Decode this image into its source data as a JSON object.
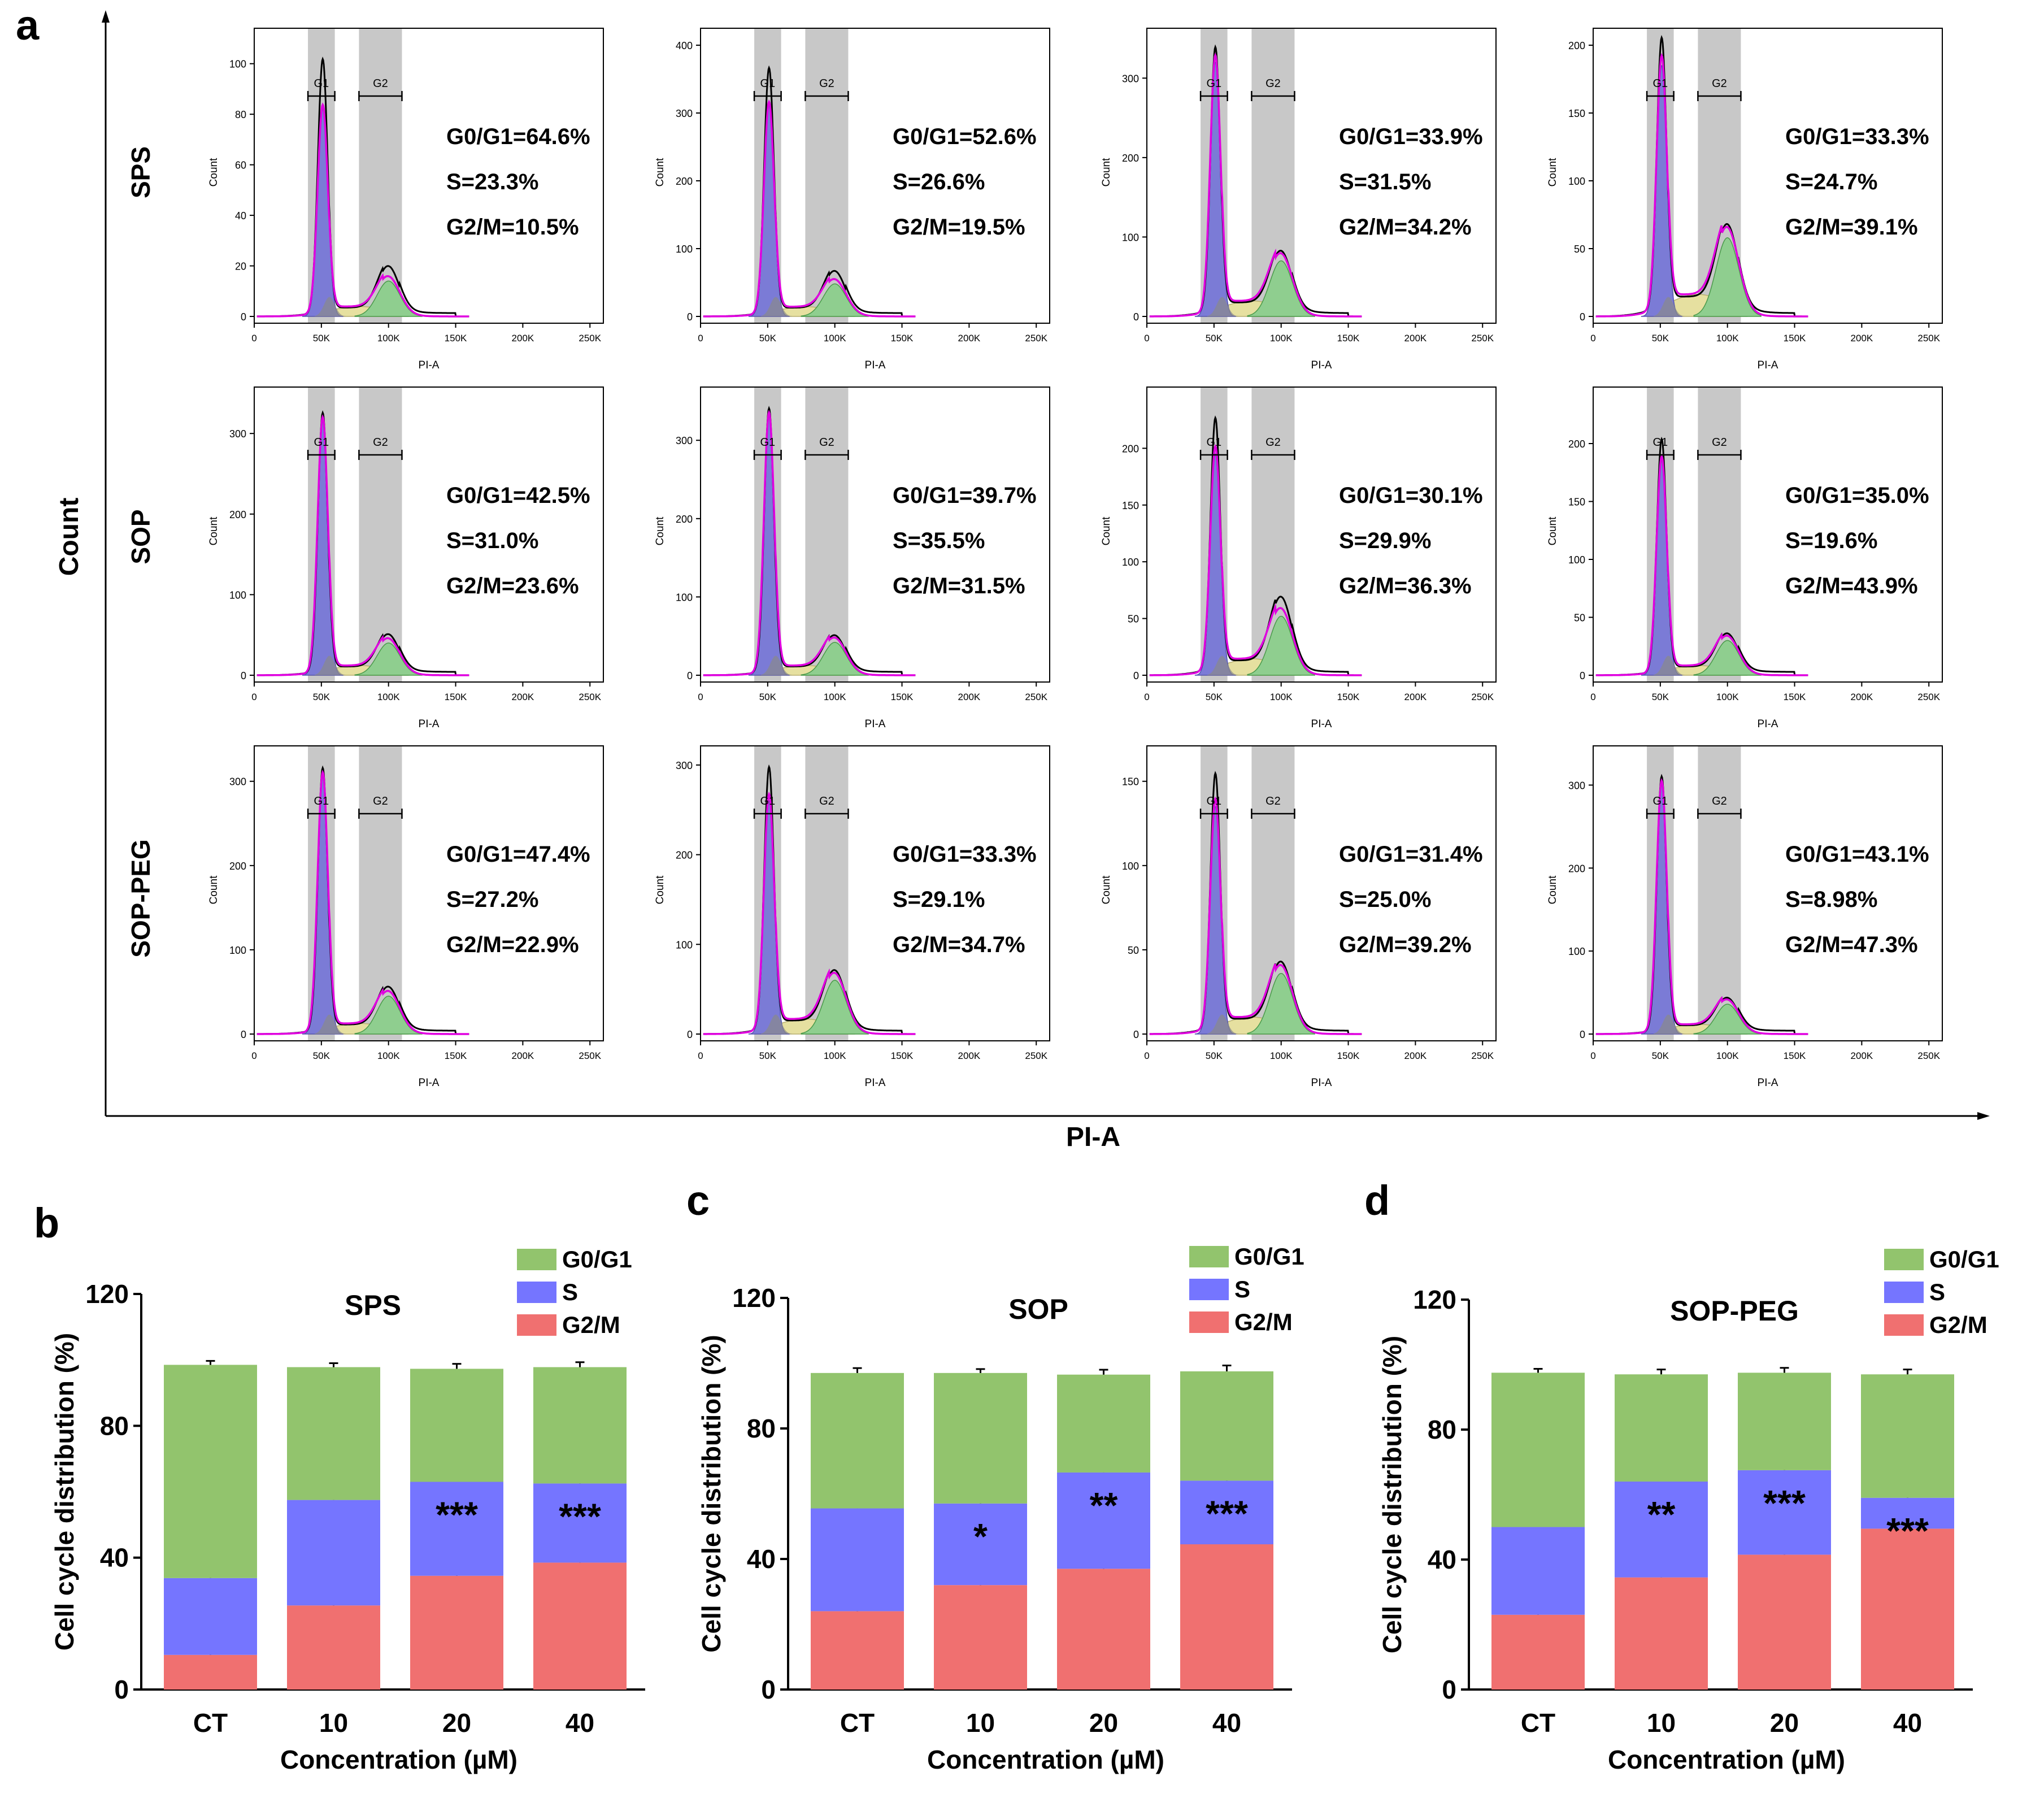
{
  "colors": {
    "g0g1": "#92c46d",
    "s": "#7575ff",
    "g2m": "#f07070",
    "gate": "#c8c8c8",
    "hist_g1_fill": "#7b7bd6",
    "hist_g2_fill": "#8fce8f",
    "hist_s_fill": "#e6e0a0",
    "hist_debris": "#8a8a8a",
    "line_black": "#000000",
    "line_magenta": "#e000e0"
  },
  "panel_a": {
    "letter": "a",
    "x_title": "PI-A",
    "y_title": "Count",
    "row_labels": [
      "SPS",
      "SOP",
      "SOP-PEG"
    ],
    "plot_xlabel": "PI-A",
    "plot_ylabel": "Count",
    "gate_labels": [
      "G1",
      "G2"
    ],
    "xticks": [
      "0",
      "50K",
      "100K",
      "150K",
      "200K",
      "250K"
    ]
  },
  "panel_b": {
    "letter": "b"
  },
  "panel_c": {
    "letter": "c"
  },
  "panel_d": {
    "letter": "d"
  },
  "chart_data": [
    {
      "type": "histogram",
      "panel": "a",
      "description": "Flow cytometry PI-A histograms, 3 rows (SPS, SOP, SOP-PEG) x 4 columns (CT, 10, 20, 40 uM)",
      "x_axis": {
        "label": "PI-A",
        "range": [
          0,
          260000
        ],
        "ticks": [
          "0",
          "50K",
          "100K",
          "150K",
          "200K",
          "250K"
        ]
      },
      "plots": [
        {
          "row": "SPS",
          "col": 1,
          "yticks": [
            0,
            20,
            40,
            60,
            80,
            100
          ],
          "ymax": 110,
          "g1_peak": 100,
          "g1_model": 82,
          "g2_peak": 18,
          "g2_model": 14,
          "stats": [
            "G0/G1=64.6%",
            "S=23.3%",
            "G2/M=10.5%"
          ]
        },
        {
          "row": "SPS",
          "col": 2,
          "yticks": [
            0,
            100,
            200,
            300,
            400
          ],
          "ymax": 410,
          "g1_peak": 360,
          "g1_model": 310,
          "g2_peak": 60,
          "g2_model": 48,
          "stats": [
            "G0/G1=52.6%",
            "S=26.6%",
            "G2/M=19.5%"
          ]
        },
        {
          "row": "SPS",
          "col": 3,
          "yticks": [
            0,
            100,
            200,
            300
          ],
          "ymax": 350,
          "g1_peak": 330,
          "g1_model": 320,
          "g2_peak": 73,
          "g2_model": 70,
          "stats": [
            "G0/G1=33.9%",
            "S=31.5%",
            "G2/M=34.2%"
          ]
        },
        {
          "row": "SPS",
          "col": 4,
          "yticks": [
            0,
            50,
            100,
            150,
            200
          ],
          "ymax": 205,
          "g1_peak": 198,
          "g1_model": 185,
          "g2_peak": 60,
          "g2_model": 58,
          "stats": [
            "G0/G1=33.3%",
            "S=24.7%",
            "G2/M=39.1%"
          ]
        },
        {
          "row": "SOP",
          "col": 1,
          "yticks": [
            0,
            100,
            200,
            300
          ],
          "ymax": 345,
          "g1_peak": 320,
          "g1_model": 315,
          "g2_peak": 45,
          "g2_model": 40,
          "stats": [
            "G0/G1=42.5%",
            "S=31.0%",
            "G2/M=23.6%"
          ]
        },
        {
          "row": "SOP",
          "col": 2,
          "yticks": [
            0,
            100,
            200,
            300
          ],
          "ymax": 355,
          "g1_peak": 335,
          "g1_model": 330,
          "g2_peak": 45,
          "g2_model": 42,
          "stats": [
            "G0/G1=39.7%",
            "S=35.5%",
            "G2/M=31.5%"
          ]
        },
        {
          "row": "SOP",
          "col": 3,
          "yticks": [
            0,
            50,
            100,
            150,
            200
          ],
          "ymax": 245,
          "g1_peak": 220,
          "g1_model": 195,
          "g2_peak": 62,
          "g2_model": 52,
          "stats": [
            "G0/G1=30.1%",
            "S=29.9%",
            "G2/M=36.3%"
          ]
        },
        {
          "row": "SOP",
          "col": 4,
          "yticks": [
            0,
            50,
            100,
            150,
            200
          ],
          "ymax": 240,
          "g1_peak": 200,
          "g1_model": 185,
          "g2_peak": 32,
          "g2_model": 30,
          "stats": [
            "G0/G1=35.0%",
            "S=19.6%",
            "G2/M=43.9%"
          ]
        },
        {
          "row": "SOP-PEG",
          "col": 1,
          "yticks": [
            0,
            100,
            200,
            300
          ],
          "ymax": 330,
          "g1_peak": 310,
          "g1_model": 305,
          "g2_peak": 50,
          "g2_model": 45,
          "stats": [
            "G0/G1=47.4%",
            "S=27.2%",
            "G2/M=22.9%"
          ]
        },
        {
          "row": "SOP-PEG",
          "col": 2,
          "yticks": [
            0,
            100,
            200,
            300
          ],
          "ymax": 310,
          "g1_peak": 290,
          "g1_model": 260,
          "g2_peak": 63,
          "g2_model": 60,
          "stats": [
            "G0/G1=33.3%",
            "S=29.1%",
            "G2/M=34.7%"
          ]
        },
        {
          "row": "SOP-PEG",
          "col": 3,
          "yticks": [
            0,
            50,
            100,
            150
          ],
          "ymax": 165,
          "g1_peak": 150,
          "g1_model": 135,
          "g2_peak": 38,
          "g2_model": 36,
          "stats": [
            "G0/G1=31.4%",
            "S=25.0%",
            "G2/M=39.2%"
          ]
        },
        {
          "row": "SOP-PEG",
          "col": 4,
          "yticks": [
            0,
            100,
            200,
            300
          ],
          "ymax": 335,
          "g1_peak": 305,
          "g1_model": 300,
          "g2_peak": 38,
          "g2_model": 36,
          "stats": [
            "G0/G1=43.1%",
            "S=8.98%",
            "G2/M=47.3%"
          ]
        }
      ]
    },
    {
      "type": "bar",
      "stacked": true,
      "panel": "b",
      "title": "SPS",
      "xlabel": "Concentration (µM)",
      "ylabel": "Cell cycle distribution (%)",
      "ylim": [
        0,
        120
      ],
      "yticks": [
        0,
        40,
        80,
        120
      ],
      "categories": [
        "CT",
        "10",
        "20",
        "40"
      ],
      "series": [
        {
          "name": "G2/M",
          "values": [
            10.5,
            25.5,
            34.5,
            38.5
          ],
          "errors": [
            1.5,
            1.2,
            1.5,
            1.5
          ]
        },
        {
          "name": "S",
          "values": [
            23.3,
            32.0,
            28.5,
            24.0
          ],
          "errors": [
            1.5,
            1.5,
            1.5,
            1.8
          ]
        },
        {
          "name": "G0/G1",
          "values": [
            64.7,
            40.3,
            34.3,
            35.3
          ],
          "errors": [
            1.2,
            1.2,
            1.5,
            1.5
          ]
        }
      ],
      "legend": [
        "G0/G1",
        "S",
        "G2/M"
      ],
      "significance": [
        "",
        "",
        "***",
        "***"
      ]
    },
    {
      "type": "bar",
      "stacked": true,
      "panel": "c",
      "title": "SOP",
      "xlabel": "Concentration (µM)",
      "ylabel": "Cell cycle distribution (%)",
      "ylim": [
        0,
        120
      ],
      "yticks": [
        0,
        40,
        80,
        120
      ],
      "categories": [
        "CT",
        "10",
        "20",
        "40"
      ],
      "series": [
        {
          "name": "G2/M",
          "values": [
            24.0,
            32.0,
            37.0,
            44.5
          ],
          "errors": [
            1.2,
            1.2,
            1.2,
            1.5
          ]
        },
        {
          "name": "S",
          "values": [
            31.5,
            25.0,
            29.5,
            19.5
          ],
          "errors": [
            1.5,
            1.5,
            1.5,
            1.5
          ]
        },
        {
          "name": "G0/G1",
          "values": [
            41.5,
            40.0,
            30.0,
            33.5
          ],
          "errors": [
            1.5,
            1.2,
            1.5,
            1.8
          ]
        }
      ],
      "legend": [
        "G0/G1",
        "S",
        "G2/M"
      ],
      "significance": [
        "",
        "*",
        "**",
        "***"
      ]
    },
    {
      "type": "bar",
      "stacked": true,
      "panel": "d",
      "title": "SOP-PEG",
      "xlabel": "Concentration (µM)",
      "ylabel": "Cell cycle distribution (%)",
      "ylim": [
        0,
        120
      ],
      "yticks": [
        0,
        40,
        80,
        120
      ],
      "categories": [
        "CT",
        "10",
        "20",
        "40"
      ],
      "series": [
        {
          "name": "G2/M",
          "values": [
            23.0,
            34.5,
            41.5,
            49.5
          ],
          "errors": [
            1.2,
            1.5,
            1.2,
            1.5
          ]
        },
        {
          "name": "S",
          "values": [
            27.0,
            29.5,
            26.0,
            9.5
          ],
          "errors": [
            1.8,
            1.5,
            1.5,
            1.5
          ]
        },
        {
          "name": "G0/G1",
          "values": [
            47.5,
            33.0,
            30.0,
            38.0
          ],
          "errors": [
            1.2,
            1.5,
            1.5,
            1.5
          ]
        }
      ],
      "legend": [
        "G0/G1",
        "S",
        "G2/M"
      ],
      "significance": [
        "",
        "**",
        "***",
        "***"
      ]
    }
  ]
}
